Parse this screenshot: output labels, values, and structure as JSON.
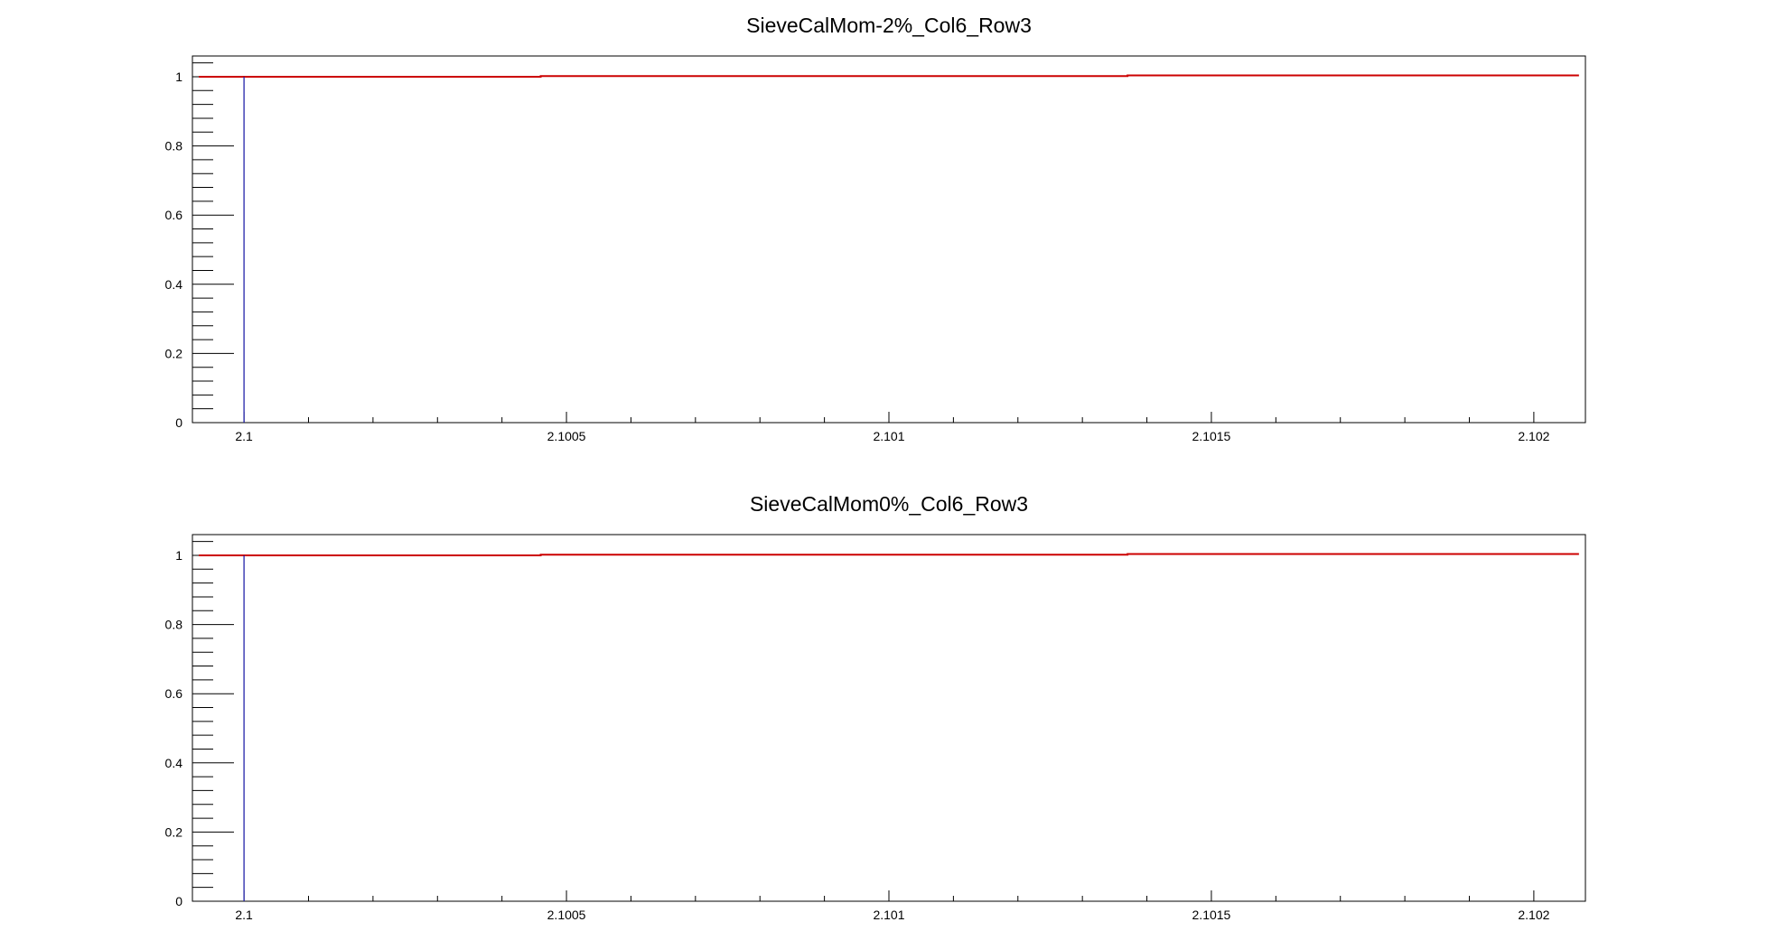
{
  "chart_data": [
    {
      "type": "line",
      "title": "SieveCalMom-2%_Col6_Row3",
      "xlim": [
        2.09992,
        2.10208
      ],
      "ylim": [
        0,
        1.06
      ],
      "x_ticks": [
        "2.1",
        "2.1005",
        "2.101",
        "2.1015",
        "2.102"
      ],
      "x_tick_values": [
        2.1,
        2.1005,
        2.101,
        2.1015,
        2.102
      ],
      "y_ticks": [
        "0",
        "0.2",
        "0.4",
        "0.6",
        "0.8",
        "1"
      ],
      "y_tick_values": [
        0,
        0.2,
        0.4,
        0.6,
        0.8,
        1
      ],
      "grid": false,
      "series": [
        {
          "color": "#cc0000",
          "style": "step",
          "x": [
            2.09993,
            2.10046,
            2.10137,
            2.10207
          ],
          "y": [
            1.0,
            1.002,
            1.004,
            1.004
          ]
        },
        {
          "color": "#2222aa",
          "style": "vertical",
          "x": [
            2.1,
            2.1
          ],
          "y": [
            0,
            1.0
          ]
        }
      ]
    },
    {
      "type": "line",
      "title": "SieveCalMom0%_Col6_Row3",
      "xlim": [
        2.09992,
        2.10208
      ],
      "ylim": [
        0,
        1.06
      ],
      "x_ticks": [
        "2.1",
        "2.1005",
        "2.101",
        "2.1015",
        "2.102"
      ],
      "x_tick_values": [
        2.1,
        2.1005,
        2.101,
        2.1015,
        2.102
      ],
      "y_ticks": [
        "0",
        "0.2",
        "0.4",
        "0.6",
        "0.8",
        "1"
      ],
      "y_tick_values": [
        0,
        0.2,
        0.4,
        0.6,
        0.8,
        1
      ],
      "grid": false,
      "series": [
        {
          "color": "#cc0000",
          "style": "step",
          "x": [
            2.09993,
            2.10046,
            2.10137,
            2.10207
          ],
          "y": [
            1.0,
            1.002,
            1.004,
            1.004
          ]
        },
        {
          "color": "#2222aa",
          "style": "vertical",
          "x": [
            2.1,
            2.1
          ],
          "y": [
            0,
            1.0
          ]
        }
      ]
    }
  ]
}
